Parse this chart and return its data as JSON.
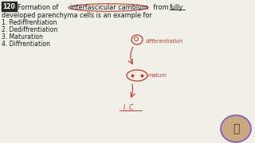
{
  "bg_color": "#f0efe8",
  "question_number": "120",
  "qnum_bg": "#2a2a2a",
  "qnum_color": "#ffffff",
  "line1a": "Formation of ",
  "line1b": "interfascicular cambium",
  "line1c": " from ",
  "line1d": "fully",
  "line2": "developed parenchyma cells is an example for",
  "options": [
    "1. Rediffrentiation",
    "2. Dediffrentiation",
    "3. Maturation",
    "4. Diffrentiation"
  ],
  "red_color": "#c0392b",
  "dark_color": "#1a1a1a",
  "annotation1": "differentiation",
  "annotation2": "matum",
  "ic_text": "I. C"
}
